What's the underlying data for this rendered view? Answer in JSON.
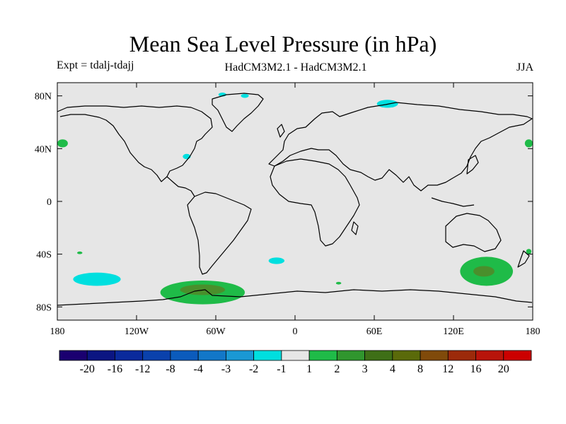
{
  "header": {
    "title": "Mean Sea Level Pressure (in hPa)",
    "left": "Expt = tdalj-tdajj",
    "center": "HadCM3M2.1 - HadCM3M2.1",
    "right": "JJA"
  },
  "map": {
    "background": "#e6e6e6",
    "x_ticks": [
      {
        "lon": -180,
        "label": "180"
      },
      {
        "lon": -120,
        "label": "120W"
      },
      {
        "lon": -60,
        "label": "60W"
      },
      {
        "lon": 0,
        "label": "0"
      },
      {
        "lon": 60,
        "label": "60E"
      },
      {
        "lon": 120,
        "label": "120E"
      },
      {
        "lon": 180,
        "label": "180"
      }
    ],
    "y_ticks": [
      {
        "lat": 80,
        "label": "80N"
      },
      {
        "lat": 40,
        "label": "40N"
      },
      {
        "lat": 0,
        "label": "0"
      },
      {
        "lat": -40,
        "label": "40S"
      },
      {
        "lat": -80,
        "label": "80S"
      }
    ],
    "anomalies": [
      {
        "name": "sub-antarctic-positive",
        "lon": -70,
        "lat": -69,
        "rlon": 32,
        "rlat": 9,
        "color": "#1fbb48"
      },
      {
        "name": "sub-antarctic-positive-core",
        "lon": -70,
        "lat": -67,
        "rlon": 17,
        "rlat": 4,
        "color": "#4a8f2c"
      },
      {
        "name": "tasman-positive",
        "lon": 145,
        "lat": -53,
        "rlon": 20,
        "rlat": 11,
        "color": "#1fbb48"
      },
      {
        "name": "tasman-positive-core",
        "lon": 143,
        "lat": -53,
        "rlon": 8,
        "rlat": 4,
        "color": "#4a8f2c"
      },
      {
        "name": "southeast-pacific-negative",
        "lon": -150,
        "lat": -59,
        "rlon": 18,
        "rlat": 5,
        "color": "#00dfdf"
      },
      {
        "name": "south-atlantic-negative",
        "lon": -14,
        "lat": -45,
        "rlon": 6,
        "rlat": 2.5,
        "color": "#00dfdf"
      },
      {
        "name": "barents-negative",
        "lon": 70,
        "lat": 74,
        "rlon": 8,
        "rlat": 3,
        "color": "#00dfdf"
      },
      {
        "name": "greenland-negative-a",
        "lon": -55,
        "lat": 81,
        "rlon": 3,
        "rlat": 1.5,
        "color": "#00dfdf"
      },
      {
        "name": "greenland-negative-b",
        "lon": -38,
        "lat": 80,
        "rlon": 3,
        "rlat": 1.5,
        "color": "#00dfdf"
      },
      {
        "name": "us-east-negative",
        "lon": -82,
        "lat": 34,
        "rlon": 3,
        "rlat": 2,
        "color": "#00dfdf"
      },
      {
        "name": "pacific-east-positive",
        "lon": -176,
        "lat": 44,
        "rlon": 4,
        "rlat": 3,
        "color": "#1fbb48"
      },
      {
        "name": "pacific-west-positive",
        "lon": 177,
        "lat": 44,
        "rlon": 3,
        "rlat": 3,
        "color": "#1fbb48"
      },
      {
        "name": "south-pacific-positive",
        "lon": -163,
        "lat": -39,
        "rlon": 2,
        "rlat": 1,
        "color": "#1fbb48"
      },
      {
        "name": "south-indian-positive",
        "lon": 33,
        "lat": -62,
        "rlon": 2,
        "rlat": 1,
        "color": "#1fbb48"
      },
      {
        "name": "new-zealand-positive",
        "lon": 177,
        "lat": -38,
        "rlon": 2,
        "rlat": 2,
        "color": "#1fbb48"
      }
    ]
  },
  "colorbar": {
    "colors": [
      "#1a0070",
      "#0b1582",
      "#0a2a9c",
      "#0a41ac",
      "#0b5bbc",
      "#1277c8",
      "#1a98d4",
      "#00dfdf",
      "#e6e6e6",
      "#1fbb48",
      "#30962e",
      "#3e6f17",
      "#5a6a0a",
      "#804a0a",
      "#9c2a0a",
      "#b8140a",
      "#cc0000"
    ],
    "labels": [
      "-20",
      "-16",
      "-12",
      "-8",
      "-4",
      "-3",
      "-2",
      "-1",
      "1",
      "2",
      "3",
      "4",
      "8",
      "12",
      "16",
      "20"
    ]
  }
}
